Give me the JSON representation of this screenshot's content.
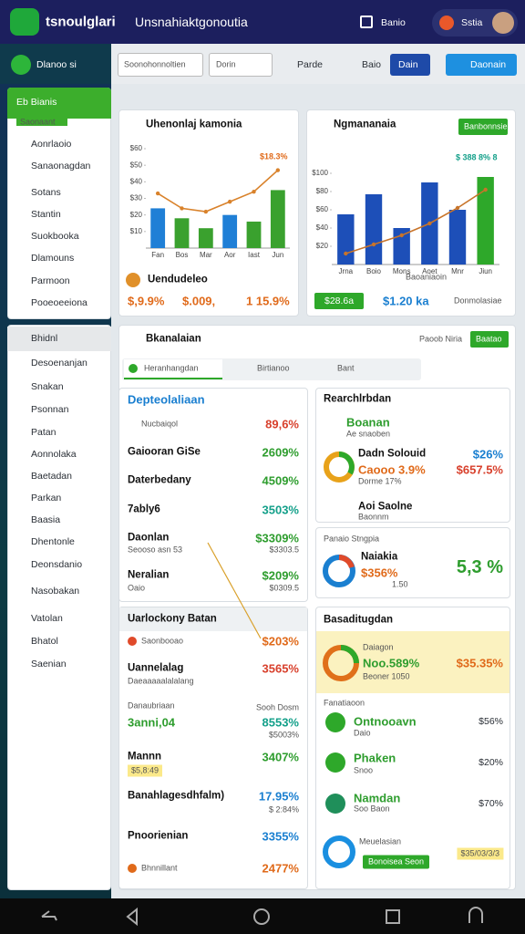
{
  "header": {
    "app": "tsnoulglari",
    "title": "Unsnahiaktgonoutia",
    "menu": "Banio",
    "user": "Sstia"
  },
  "toolbar": {
    "brand": "Dlanoo si",
    "filter": "Soonohonnoltien",
    "search": "Dorin",
    "buttons": [
      "Parde",
      "Baio",
      "Dain",
      "Daonain"
    ]
  },
  "sidebar": {
    "header": "Eb Bianis",
    "badge": "Saonaant",
    "items": [
      "Aonrlaoio",
      "Sanaonagdan",
      "Sotans",
      "Stantin",
      "Suokbooka",
      "Dlamouns",
      "Parmoon",
      "Pooeoeeiona"
    ],
    "section": "Bhidnl",
    "items2": [
      "Desoenanjan",
      "Snakan",
      "Psonnan",
      "Patan",
      "Aonnolaka",
      "Baetadan",
      "Parkan",
      "Baasia",
      "Dhentonle",
      "Deonsdanio",
      "Nasobakan",
      "Vatolan",
      "Bhatol",
      "Saenian"
    ]
  },
  "chart_data": [
    {
      "type": "combo",
      "title": "Uhenonlaj kamonia",
      "annotation": "$18.3%",
      "categories": [
        "Fan",
        "Bos",
        "Mar",
        "Aor",
        "Iast",
        "Jun"
      ],
      "ylim": [
        0,
        60
      ],
      "yticks": [
        {
          "value": 10,
          "label": "$10"
        },
        {
          "value": 20,
          "label": "$20"
        },
        {
          "value": 30,
          "label": "$30"
        },
        {
          "value": 40,
          "label": "$40"
        },
        {
          "value": 50,
          "label": "$50"
        },
        {
          "value": 60,
          "label": "$60"
        }
      ],
      "grid": false,
      "series": [
        {
          "type": "bar",
          "colors": [
            "#1f7fd6",
            "#3aa12e",
            "#3aa12e",
            "#1f7fd6",
            "#3aa12e",
            "#3aa12e"
          ],
          "values": [
            24,
            18,
            12,
            20,
            16,
            35
          ]
        },
        {
          "type": "line",
          "color": "#d9822b",
          "values": [
            33,
            24,
            22,
            28,
            34,
            47
          ]
        }
      ]
    },
    {
      "type": "combo",
      "title": "Ngmananaia",
      "annotation": "$ 388 8% 8",
      "x_label": "Baoaniaoin",
      "categories": [
        "Jrna",
        "Boio",
        "Mons",
        "Aoet",
        "Mnr",
        "Jiun"
      ],
      "ylim": [
        0,
        120
      ],
      "yticks": [
        {
          "value": 20,
          "label": "$20"
        },
        {
          "value": 40,
          "label": "$40"
        },
        {
          "value": 60,
          "label": "$60"
        },
        {
          "value": 80,
          "label": "$80"
        },
        {
          "value": 100,
          "label": "$100"
        }
      ],
      "grid": false,
      "series": [
        {
          "type": "bar",
          "colors": [
            "#1d4fb8",
            "#1d4fb8",
            "#1d4fb8",
            "#1d4fb8",
            "#1d4fb8",
            "#2ea82a"
          ],
          "values": [
            55,
            77,
            40,
            90,
            60,
            96
          ]
        },
        {
          "type": "line",
          "color": "#c8742a",
          "values": [
            12,
            22,
            32,
            45,
            62,
            82
          ]
        }
      ]
    }
  ],
  "chart_cards": [
    {
      "footer": "Uendudeleo",
      "stats": [
        "$,9.9%",
        "$.009,",
        "1 15.9%"
      ]
    },
    {
      "button": "Banbonnsie",
      "stats": [
        "$28.6a",
        "$1.20 ka",
        "Donmolasiae"
      ]
    }
  ],
  "panel": {
    "title": "Bkanalaian",
    "filter": "Paoob Niria",
    "button": "Baatao",
    "tabs": [
      "Heranhangdan",
      "Birtianoo",
      "Bant"
    ],
    "left": [
      {
        "title": "Depteolaliaan",
        "rows": [
          [
            "Nucbaiqol",
            "89,6%"
          ],
          [
            "Gaiooran GiSe",
            "2609%"
          ],
          [
            "Daterbedany",
            "4509%"
          ],
          [
            "7ably6",
            "3503%"
          ],
          [
            "Daonlan",
            "Seooso asn 53",
            "$3309%",
            "$3303.5"
          ],
          [
            "Neralian",
            "Oaio",
            "$209%",
            "$0309.5"
          ]
        ]
      },
      {
        "title": "Uarlockony Batan",
        "rows": [
          [
            "Saonbooao",
            "$203%"
          ],
          [
            "Uannelalag",
            "Daeaaaaalalalang",
            "3565%"
          ],
          [
            "Danaubriaan",
            "Sooh Dosm",
            "3anni,04",
            "8553%",
            "$5003%"
          ],
          [
            "Mannn",
            "3407%",
            "$5,8:49"
          ],
          [
            "Banahlagesdhfalm)",
            "17.95%",
            "$ 2:84%"
          ],
          [
            "Pnoorienian",
            "Bhnnillant",
            "3355%",
            "2477%"
          ]
        ]
      }
    ],
    "right": [
      {
        "title": "Rearchlrbdan",
        "rows": [
          [
            "Boanan",
            "Ae snaoben"
          ],
          [
            "Dadn Solouid",
            "Caooo 3.9%",
            "Dorme 17%",
            "$26%",
            "$657.5%"
          ],
          [
            "Aoi Saolne",
            "Baonnm"
          ]
        ]
      },
      {
        "title": "Panaio Stngpia",
        "rows": [
          [
            "Naiakia",
            "$356%",
            "1.50",
            "5,3 %"
          ]
        ]
      },
      {
        "title": "Basaditugdan",
        "rows": [
          [
            "Daiagon",
            "Noo.589%",
            "Beoner 1050",
            "$35.35%"
          ]
        ],
        "subtitle": "Fanatiaoon",
        "items": [
          [
            "Ontnooavn",
            "Daio",
            "$56%"
          ],
          [
            "Phaken",
            "Snoo",
            "$20%"
          ],
          [
            "Namdan",
            "Soo Baon",
            "$70%"
          ],
          [
            "Meuelasian",
            "Bonoisea Seon",
            "$35/03/3/3"
          ]
        ]
      }
    ]
  }
}
